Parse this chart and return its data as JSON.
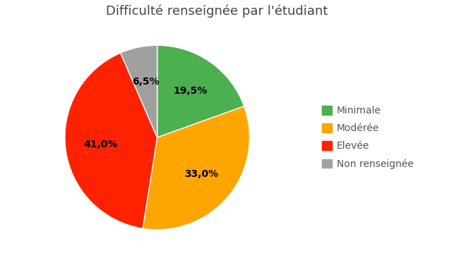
{
  "title": "Difficulté renseignée par l'étudiant",
  "labels": [
    "Minimale",
    "Modérée",
    "Elevée",
    "Non renseignée"
  ],
  "values": [
    19.5,
    33.0,
    41.0,
    6.5
  ],
  "colors": [
    "#4CAF50",
    "#FFA500",
    "#FF2200",
    "#A0A0A0"
  ],
  "autopct_labels": [
    "19,5%",
    "33,0%",
    "41,0%",
    "6,5%"
  ],
  "title_fontsize": 13,
  "label_fontsize": 10,
  "legend_fontsize": 10,
  "background_color": "#ffffff",
  "startangle": 90
}
